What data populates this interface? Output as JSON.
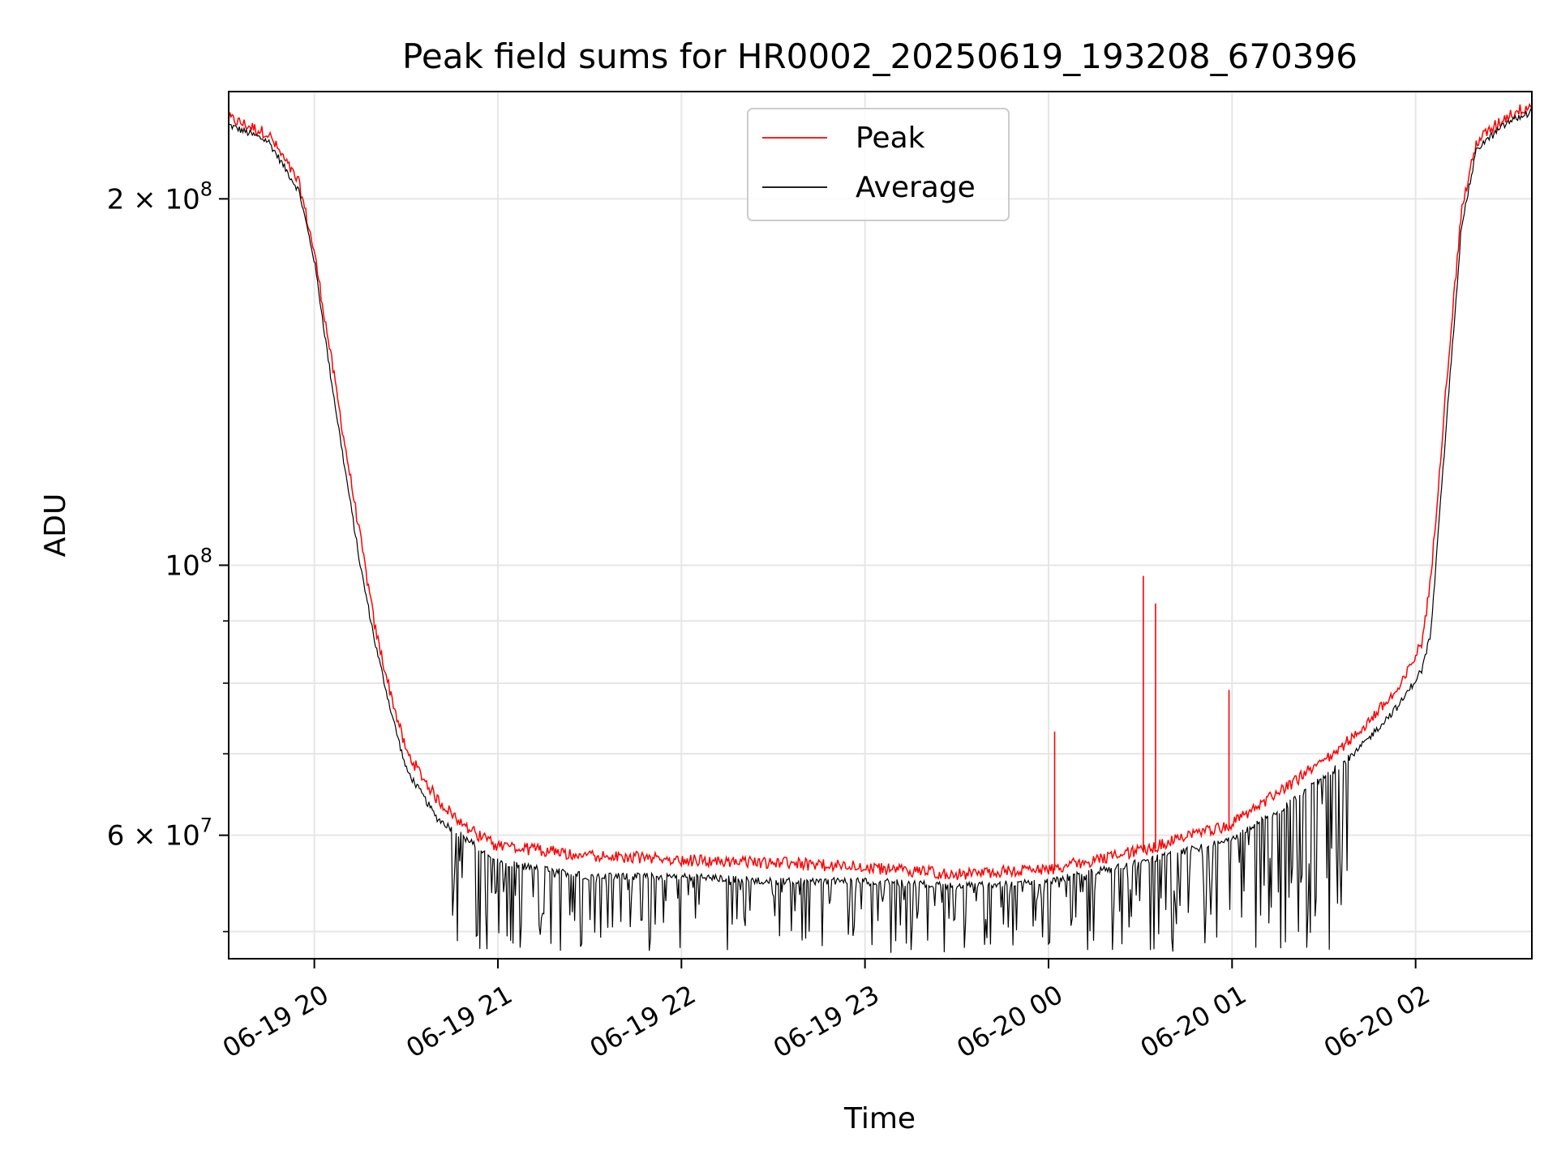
{
  "chart_data": {
    "type": "line",
    "title": "Peak field sums for HR0002_20250619_193208_670396",
    "xlabel": "Time",
    "ylabel": "ADU",
    "yscale": "log",
    "ylim": [
      47500000,
      245000000
    ],
    "xlim": [
      "06-19 19:32",
      "06-20 02:38"
    ],
    "grid": true,
    "legend_position": "upper center",
    "x_ticks": [
      "06-19 20",
      "06-19 21",
      "06-19 22",
      "06-19 23",
      "06-20 00",
      "06-20 01",
      "06-20 02"
    ],
    "y_ticks": [
      {
        "value": 200000000,
        "mantissa": "2",
        "base": "10",
        "exponent": "8"
      },
      {
        "value": 100000000,
        "mantissa": "",
        "base": "10",
        "exponent": "8"
      },
      {
        "value": 60000000,
        "mantissa": "6",
        "base": "10",
        "exponent": "7"
      }
    ],
    "y_minor_ticks": [
      50000000,
      70000000,
      80000000,
      90000000
    ],
    "x": [
      "06-19 19:32",
      "06-19 19:45",
      "06-19 19:55",
      "06-19 20:00",
      "06-19 20:05",
      "06-19 20:10",
      "06-19 20:15",
      "06-19 20:20",
      "06-19 20:25",
      "06-19 20:30",
      "06-19 20:40",
      "06-19 20:50",
      "06-19 21:00",
      "06-19 21:30",
      "06-19 22:00",
      "06-19 22:30",
      "06-19 23:00",
      "06-19 23:30",
      "06-20 00:00",
      "06-20 00:30",
      "06-20 01:00",
      "06-20 01:20",
      "06-20 01:40",
      "06-20 01:55",
      "06-20 02:02",
      "06-20 02:05",
      "06-20 02:10",
      "06-20 02:15",
      "06-20 02:20",
      "06-20 02:30",
      "06-20 02:38"
    ],
    "series": [
      {
        "name": "Peak",
        "color": "#ff0000",
        "values": [
          232000000,
          225000000,
          205000000,
          180000000,
          150000000,
          125000000,
          105000000,
          88000000,
          78000000,
          70000000,
          64000000,
          60500000,
          58500000,
          57500000,
          57000000,
          56700000,
          56200000,
          55500000,
          56000000,
          58000000,
          61000000,
          66000000,
          72000000,
          79000000,
          86000000,
          97000000,
          140000000,
          195000000,
          222000000,
          233000000,
          238000000
        ],
        "spikes": [
          {
            "x": "06-20 00:02",
            "value": 73000000
          },
          {
            "x": "06-20 00:31",
            "value": 98000000
          },
          {
            "x": "06-20 00:35",
            "value": 93000000
          },
          {
            "x": "06-20 00:59",
            "value": 79000000
          }
        ]
      },
      {
        "name": "Average",
        "color": "#000000",
        "values": [
          230000000,
          223000000,
          203000000,
          178000000,
          145000000,
          120000000,
          100000000,
          86000000,
          76000000,
          68000000,
          62000000,
          59500000,
          57000000,
          55500000,
          55500000,
          55000000,
          55000000,
          54500000,
          55000000,
          57000000,
          59500000,
          64000000,
          70000000,
          77000000,
          82000000,
          88000000,
          130000000,
          190000000,
          220000000,
          231000000,
          236000000
        ],
        "dips_min": 48000000
      }
    ]
  }
}
